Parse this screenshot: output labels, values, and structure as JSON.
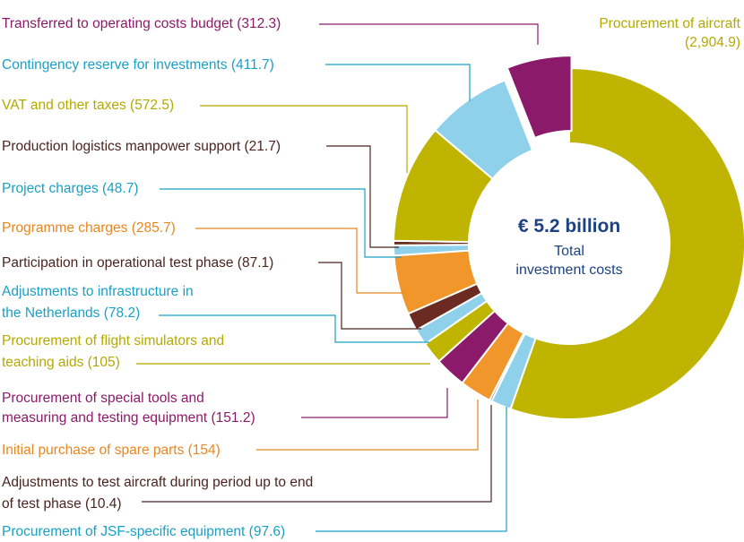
{
  "chart_data": {
    "type": "pie",
    "donut": true,
    "center_text": {
      "amount": "€ 5.2 billion",
      "line1": "Total",
      "line2": "investment costs"
    },
    "colors": {
      "olive": "#bfb400",
      "lightblue": "#8fd0ea",
      "purple": "#8c1a6a",
      "orange": "#f0962a",
      "brown": "#6b2b22",
      "center_text": "#1d4280",
      "label_teal": "#1aa0c4",
      "label_orange": "#e8861f"
    },
    "slices": [
      {
        "name": "Procurement of aircraft",
        "value": 2904.9,
        "color": "#bfb400",
        "label_lines": [
          "Procurement of aircraft",
          "(2,904.9)"
        ],
        "label_color": "#b5a900"
      },
      {
        "name": "Procurement of JSF-specific equipment",
        "value": 97.6,
        "color": "#8fd0ea",
        "label_lines": [
          "Procurement of JSF-specific equipment (97.6)"
        ],
        "label_color": "#1aa0c4"
      },
      {
        "name": "Adjustments to test aircraft during period up to end of test phase",
        "value": 10.4,
        "color": "#6b2b22",
        "label_lines": [
          "Adjustments to test aircraft during period up to end",
          "of test phase (10.4)"
        ],
        "label_color": "#4a2420"
      },
      {
        "name": "Initial purchase of spare parts",
        "value": 154,
        "color": "#f0962a",
        "label_lines": [
          "Initial purchase of spare parts (154)"
        ],
        "label_color": "#e8861f"
      },
      {
        "name": "Procurement of special tools and measuring and testing equipment",
        "value": 151.2,
        "color": "#8c1a6a",
        "label_lines": [
          "Procurement of special tools and",
          "measuring and testing equipment (151.2)"
        ],
        "label_color": "#8c1a6a"
      },
      {
        "name": "Procurement of flight simulators and teaching aids",
        "value": 105,
        "color": "#bfb400",
        "label_lines": [
          "Procurement of flight simulators and",
          "teaching aids (105)"
        ],
        "label_color": "#b5a900"
      },
      {
        "name": "Adjustments to infrastructure in the Netherlands",
        "value": 78.2,
        "color": "#8fd0ea",
        "label_lines": [
          "Adjustments to infrastructure in",
          "the Netherlands (78.2)"
        ],
        "label_color": "#1aa0c4"
      },
      {
        "name": "Participation in operational test phase",
        "value": 87.1,
        "color": "#6b2b22",
        "label_lines": [
          "Participation in operational test phase (87.1)"
        ],
        "label_color": "#4a2420"
      },
      {
        "name": "Programme charges",
        "value": 285.7,
        "color": "#f0962a",
        "label_lines": [
          "Programme charges (285.7)"
        ],
        "label_color": "#e8861f"
      },
      {
        "name": "Project charges",
        "value": 48.7,
        "color": "#8fd0ea",
        "label_lines": [
          "Project charges (48.7)"
        ],
        "label_color": "#1aa0c4"
      },
      {
        "name": "Production logistics manpower support",
        "value": 21.7,
        "color": "#6b2b22",
        "label_lines": [
          "Production logistics manpower support (21.7)"
        ],
        "label_color": "#4a2420"
      },
      {
        "name": "VAT and other taxes",
        "value": 572.5,
        "color": "#bfb400",
        "label_lines": [
          "VAT and other taxes (572.5)"
        ],
        "label_color": "#b5a900"
      },
      {
        "name": "Contingency reserve for investments",
        "value": 411.7,
        "color": "#8fd0ea",
        "label_lines": [
          "Contingency reserve for investments (411.7)"
        ],
        "label_color": "#1aa0c4"
      },
      {
        "name": "Transferred to operating costs budget",
        "value": 312.3,
        "color": "#8c1a6a",
        "label_lines": [
          "Transferred to operating costs budget (312.3)"
        ],
        "label_color": "#8c1a6a",
        "exploded": true
      }
    ]
  }
}
